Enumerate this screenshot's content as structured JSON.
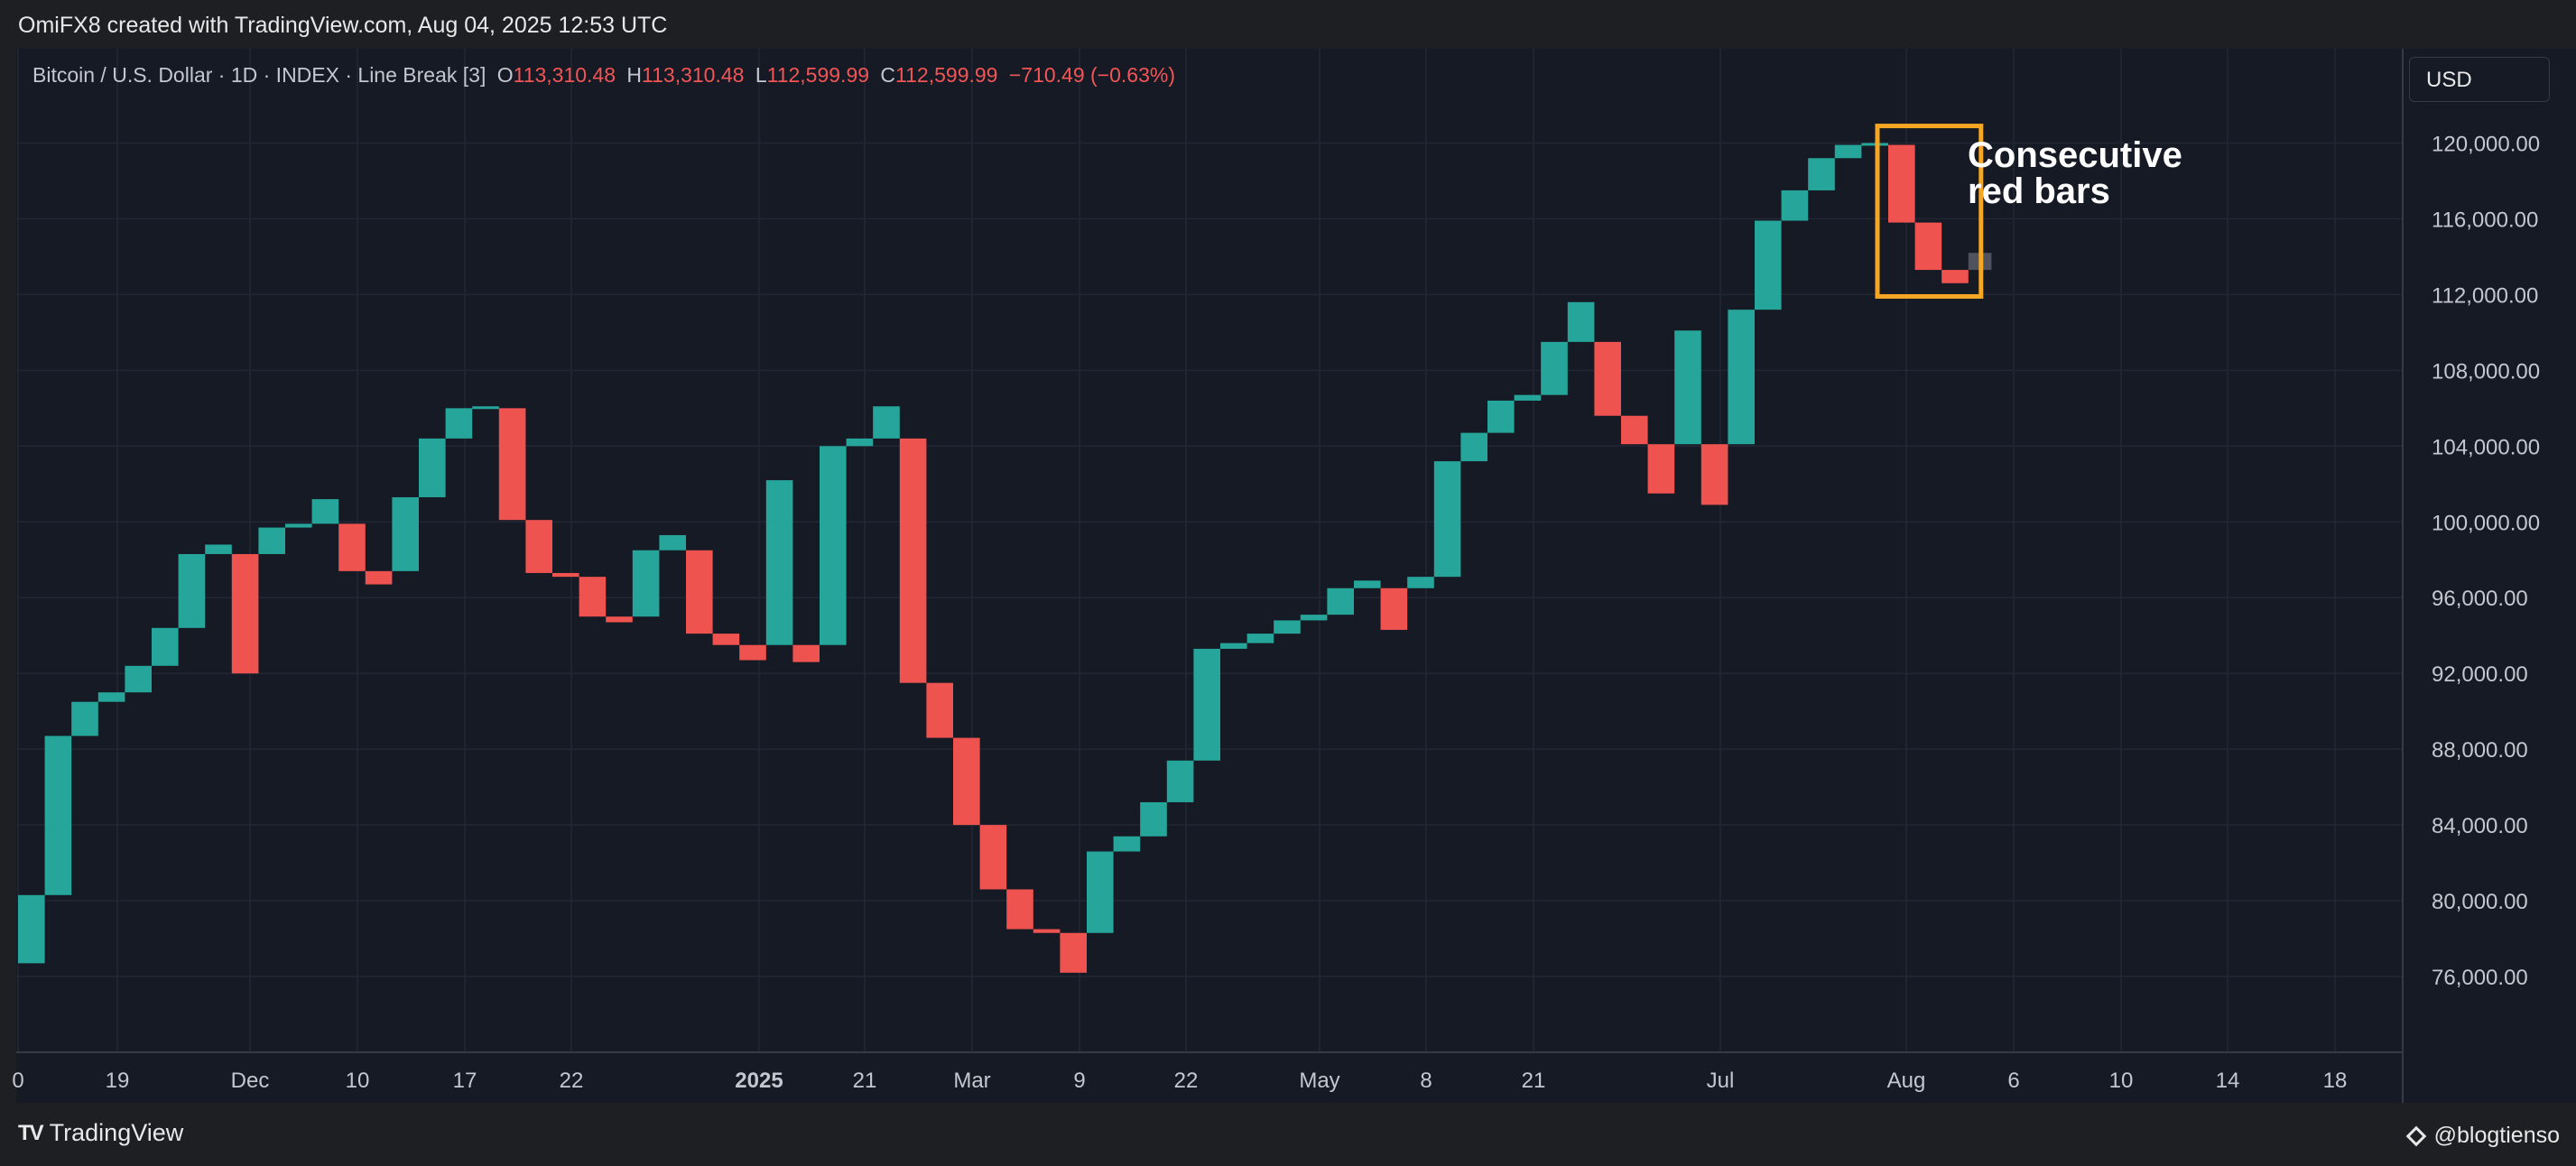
{
  "header": {
    "credit": "OmiFX8 created with TradingView.com, Aug 04, 2025 12:53 UTC"
  },
  "legend": {
    "symbol": "Bitcoin / U.S. Dollar · 1D · INDEX · Line Break [3]",
    "open_label": "O",
    "open": "113,310.48",
    "high_label": "H",
    "high": "113,310.48",
    "low_label": "L",
    "low": "112,599.99",
    "close_label": "C",
    "close": "112,599.99",
    "change": "−710.49 (−0.63%)"
  },
  "currency_button": "USD",
  "annotation": {
    "line1": "Consecutive",
    "line2": "red bars"
  },
  "footer": {
    "brand": "TradingView",
    "author": "@blogtienso"
  },
  "colors": {
    "up": "#26a69a",
    "down": "#ef5350",
    "highlight": "#f5a623",
    "background": "#161a25"
  },
  "chart_data": {
    "type": "line-break",
    "symbol": "Bitcoin / U.S. Dollar",
    "interval": "1D",
    "ylim": [
      72000,
      124500
    ],
    "y_ticks": [
      76000,
      80000,
      84000,
      88000,
      92000,
      96000,
      100000,
      104000,
      108000,
      112000,
      116000,
      120000
    ],
    "y_tick_labels": [
      "76,000.00",
      "80,000.00",
      "84,000.00",
      "88,000.00",
      "92,000.00",
      "96,000.00",
      "100,000.00",
      "104,000.00",
      "108,000.00",
      "112,000.00",
      "116,000.00",
      "120,000.00"
    ],
    "x_ticks": [
      "0",
      "19",
      "Dec",
      "10",
      "17",
      "22",
      "2025",
      "21",
      "Mar",
      "9",
      "22",
      "May",
      "8",
      "21",
      "Jul",
      "Aug",
      "6",
      "10",
      "14",
      "18"
    ],
    "bars": [
      {
        "o": 76700,
        "c": 80300
      },
      {
        "o": 80300,
        "c": 88700
      },
      {
        "o": 88700,
        "c": 90500
      },
      {
        "o": 90500,
        "c": 91000
      },
      {
        "o": 91000,
        "c": 92400
      },
      {
        "o": 92400,
        "c": 94400
      },
      {
        "o": 94400,
        "c": 98300
      },
      {
        "o": 98300,
        "c": 98800
      },
      {
        "o": 98300,
        "c": 92000
      },
      {
        "o": 98300,
        "c": 99700
      },
      {
        "o": 99700,
        "c": 99900
      },
      {
        "o": 99900,
        "c": 101200
      },
      {
        "o": 99900,
        "c": 97400
      },
      {
        "o": 97400,
        "c": 96700
      },
      {
        "o": 97400,
        "c": 101300
      },
      {
        "o": 101300,
        "c": 104400
      },
      {
        "o": 104400,
        "c": 106000
      },
      {
        "o": 106000,
        "c": 106100
      },
      {
        "o": 106000,
        "c": 100100
      },
      {
        "o": 100100,
        "c": 97300
      },
      {
        "o": 97300,
        "c": 97100
      },
      {
        "o": 97100,
        "c": 95000
      },
      {
        "o": 95000,
        "c": 94700
      },
      {
        "o": 95000,
        "c": 98500
      },
      {
        "o": 98500,
        "c": 99300
      },
      {
        "o": 98500,
        "c": 94100
      },
      {
        "o": 94100,
        "c": 93500
      },
      {
        "o": 93500,
        "c": 92700
      },
      {
        "o": 93500,
        "c": 102200
      },
      {
        "o": 93500,
        "c": 92600
      },
      {
        "o": 93500,
        "c": 104000
      },
      {
        "o": 104000,
        "c": 104400
      },
      {
        "o": 104400,
        "c": 106100
      },
      {
        "o": 104400,
        "c": 91500
      },
      {
        "o": 91500,
        "c": 88600
      },
      {
        "o": 88600,
        "c": 84000
      },
      {
        "o": 84000,
        "c": 80600
      },
      {
        "o": 80600,
        "c": 78500
      },
      {
        "o": 78500,
        "c": 78300
      },
      {
        "o": 78300,
        "c": 76200
      },
      {
        "o": 78300,
        "c": 82600
      },
      {
        "o": 82600,
        "c": 83400
      },
      {
        "o": 83400,
        "c": 85200
      },
      {
        "o": 85200,
        "c": 87400
      },
      {
        "o": 87400,
        "c": 93300
      },
      {
        "o": 93300,
        "c": 93600
      },
      {
        "o": 93600,
        "c": 94100
      },
      {
        "o": 94100,
        "c": 94800
      },
      {
        "o": 94800,
        "c": 95100
      },
      {
        "o": 95100,
        "c": 96500
      },
      {
        "o": 96500,
        "c": 96900
      },
      {
        "o": 96500,
        "c": 94300
      },
      {
        "o": 96500,
        "c": 97100
      },
      {
        "o": 97100,
        "c": 103200
      },
      {
        "o": 103200,
        "c": 104700
      },
      {
        "o": 104700,
        "c": 106400
      },
      {
        "o": 106400,
        "c": 106700
      },
      {
        "o": 106700,
        "c": 109500
      },
      {
        "o": 109500,
        "c": 111600
      },
      {
        "o": 109500,
        "c": 105600
      },
      {
        "o": 105600,
        "c": 104100
      },
      {
        "o": 104100,
        "c": 101500
      },
      {
        "o": 104100,
        "c": 110100
      },
      {
        "o": 104100,
        "c": 100900
      },
      {
        "o": 104100,
        "c": 111200
      },
      {
        "o": 111200,
        "c": 115900
      },
      {
        "o": 115900,
        "c": 117500
      },
      {
        "o": 117500,
        "c": 119200
      },
      {
        "o": 119200,
        "c": 119900
      },
      {
        "o": 119900,
        "c": 120000
      },
      {
        "o": 119900,
        "c": 115800
      },
      {
        "o": 115800,
        "c": 113300
      },
      {
        "o": 113300,
        "c": 112600
      }
    ],
    "pending_box": {
      "o": 113300,
      "c": 114200
    },
    "highlight": {
      "from_bar": 70,
      "to_bar": 72,
      "y_range": [
        111900,
        120900
      ],
      "label": "Consecutive red bars"
    }
  }
}
